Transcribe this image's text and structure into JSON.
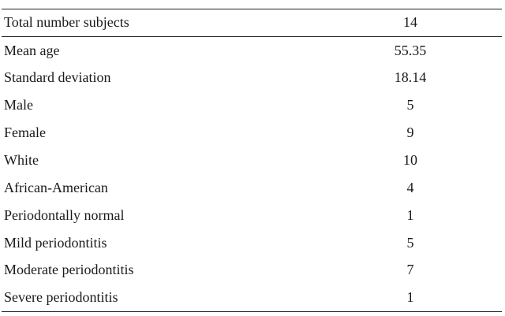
{
  "table": {
    "rows": [
      {
        "label": "Total number subjects",
        "value": "14"
      },
      {
        "label": "Mean age",
        "value": "55.35"
      },
      {
        "label": "Standard deviation",
        "value": "18.14"
      },
      {
        "label": "Male",
        "value": "5"
      },
      {
        "label": "Female",
        "value": "9"
      },
      {
        "label": "White",
        "value": "10"
      },
      {
        "label": "African-American",
        "value": "4"
      },
      {
        "label": "Periodontally normal",
        "value": "1"
      },
      {
        "label": "Mild periodontitis",
        "value": "5"
      },
      {
        "label": "Moderate periodontitis",
        "value": "7"
      },
      {
        "label": "Severe periodontitis",
        "value": "1"
      }
    ]
  }
}
